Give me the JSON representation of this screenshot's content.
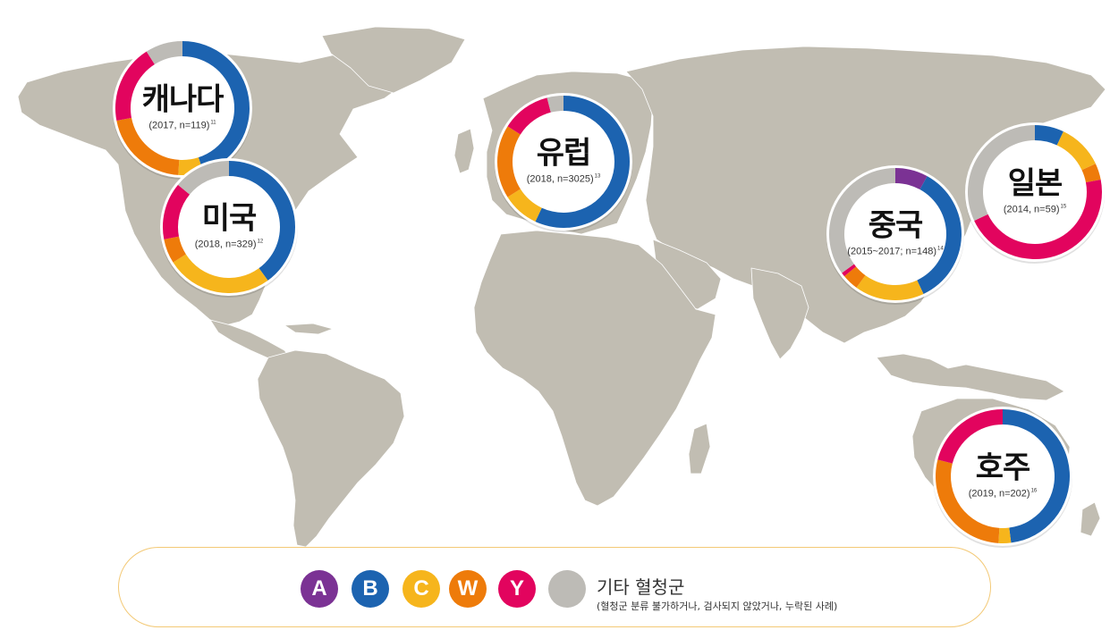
{
  "colors": {
    "A": "#7b3294",
    "B": "#1c63b0",
    "C": "#f6b51c",
    "W": "#ee7b0a",
    "Y": "#e2045e",
    "other": "#bdbbb6",
    "land": "#c1bdb2",
    "legend_border": "#f3c976"
  },
  "chart_data": {
    "type": "pie",
    "series_order": [
      "A",
      "B",
      "C",
      "W",
      "Y",
      "other"
    ],
    "charts": [
      {
        "id": "canada",
        "region": "캐나다",
        "meta": "(2017, n=119)",
        "ref": "11",
        "values": {
          "A": 0,
          "B": 45,
          "C": 6,
          "W": 21,
          "Y": 19,
          "other": 9
        }
      },
      {
        "id": "usa",
        "region": "미국",
        "meta": "(2018, n=329)",
        "ref": "12",
        "values": {
          "A": 0,
          "B": 40,
          "C": 26,
          "W": 6,
          "Y": 14,
          "other": 14
        }
      },
      {
        "id": "europe",
        "region": "유럽",
        "meta": "(2018, n=3025)",
        "ref": "13",
        "values": {
          "A": 0,
          "B": 57,
          "C": 9,
          "W": 18,
          "Y": 12,
          "other": 4
        }
      },
      {
        "id": "china",
        "region": "중국",
        "meta": "(2015~2017; n=148)",
        "ref": "14",
        "values": {
          "A": 8,
          "B": 35,
          "C": 17,
          "W": 4,
          "Y": 1,
          "other": 35
        }
      },
      {
        "id": "japan",
        "region": "일본",
        "meta": "(2014, n=59)",
        "ref": "15",
        "values": {
          "A": 0,
          "B": 7,
          "C": 11,
          "W": 4,
          "Y": 46,
          "other": 32
        }
      },
      {
        "id": "australia",
        "region": "호주",
        "meta": "(2019, n=202)",
        "ref": "16",
        "values": {
          "A": 0,
          "B": 48,
          "C": 3,
          "W": 28,
          "Y": 21,
          "other": 0
        }
      }
    ]
  },
  "legend": {
    "items": [
      {
        "key": "A",
        "label": "A"
      },
      {
        "key": "B",
        "label": "B"
      },
      {
        "key": "C",
        "label": "C"
      },
      {
        "key": "W",
        "label": "W"
      },
      {
        "key": "Y",
        "label": "Y"
      }
    ],
    "other_title": "기타 혈청군",
    "other_note": "(혈청군 분류 불가하거나, 검사되지 않았거나, 누락된 사례)"
  }
}
